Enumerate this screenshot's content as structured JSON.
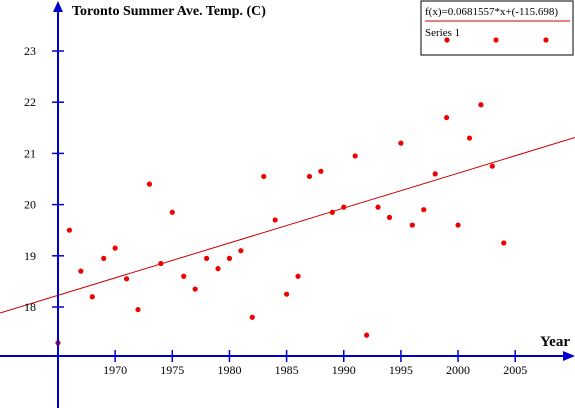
{
  "chart_data": {
    "type": "scatter",
    "title": "Toronto Summer Ave. Temp. (C)",
    "xlabel": "Year",
    "ylabel": "",
    "xlim": [
      1965,
      2005
    ],
    "ylim": [
      17,
      23
    ],
    "x_ticks": [
      1970,
      1975,
      1980,
      1985,
      1990,
      1995,
      2000,
      2005
    ],
    "y_ticks": [
      18,
      19,
      20,
      21,
      22,
      23
    ],
    "grid": false,
    "legend_position": "top-right",
    "trendline": {
      "label": "f(x)=0.0681557*x+(-115.698)",
      "slope": 0.0681557,
      "intercept": -115.698,
      "color": "#cc0000"
    },
    "series": [
      {
        "name": "Series 1",
        "color": "#ee0000",
        "points": [
          [
            1965,
            17.3
          ],
          [
            1966,
            19.5
          ],
          [
            1967,
            18.7
          ],
          [
            1968,
            18.2
          ],
          [
            1969,
            18.95
          ],
          [
            1970,
            19.15
          ],
          [
            1971,
            18.55
          ],
          [
            1972,
            17.95
          ],
          [
            1973,
            20.4
          ],
          [
            1974,
            18.85
          ],
          [
            1975,
            19.85
          ],
          [
            1976,
            18.6
          ],
          [
            1977,
            18.35
          ],
          [
            1978,
            18.95
          ],
          [
            1979,
            18.75
          ],
          [
            1980,
            18.95
          ],
          [
            1981,
            19.1
          ],
          [
            1982,
            17.8
          ],
          [
            1983,
            20.55
          ],
          [
            1984,
            19.7
          ],
          [
            1985,
            18.25
          ],
          [
            1986,
            18.6
          ],
          [
            1987,
            20.55
          ],
          [
            1988,
            20.65
          ],
          [
            1989,
            19.85
          ],
          [
            1990,
            19.95
          ],
          [
            1991,
            20.95
          ],
          [
            1992,
            17.45
          ],
          [
            1993,
            19.95
          ],
          [
            1994,
            19.75
          ],
          [
            1995,
            21.2
          ],
          [
            1996,
            19.6
          ],
          [
            1997,
            19.9
          ],
          [
            1998,
            20.6
          ],
          [
            1999,
            21.7
          ],
          [
            2000,
            19.6
          ],
          [
            2001,
            21.3
          ],
          [
            2002,
            21.95
          ],
          [
            2003,
            20.75
          ],
          [
            2004,
            19.25
          ]
        ]
      }
    ]
  }
}
